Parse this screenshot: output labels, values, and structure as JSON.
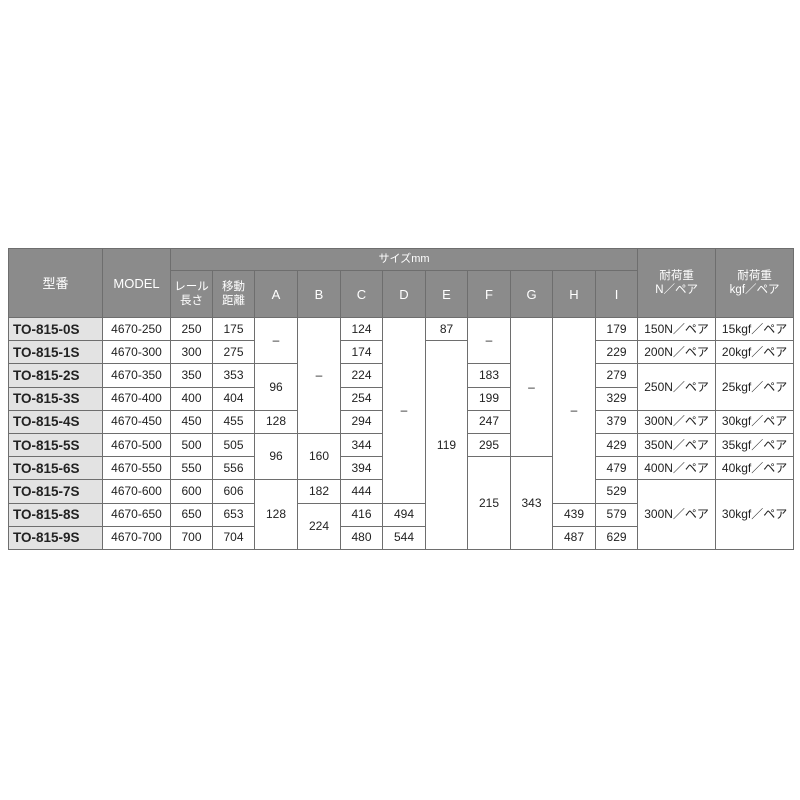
{
  "header": {
    "type": "型番",
    "model": "MODEL",
    "size_group": "サイズmm",
    "rail_length": [
      "レール",
      "長さ"
    ],
    "travel": [
      "移動",
      "距離"
    ],
    "letters": [
      "A",
      "B",
      "C",
      "D",
      "E",
      "F",
      "G",
      "H",
      "I"
    ],
    "load_n": [
      "耐荷重",
      "N／ペア"
    ],
    "load_kgf": [
      "耐荷重",
      "kgf／ペア"
    ]
  },
  "rows": [
    {
      "type": "TO-815-0S",
      "model": "4670-250",
      "rail": "250",
      "travel": "175"
    },
    {
      "type": "TO-815-1S",
      "model": "4670-300",
      "rail": "300",
      "travel": "275"
    },
    {
      "type": "TO-815-2S",
      "model": "4670-350",
      "rail": "350",
      "travel": "353"
    },
    {
      "type": "TO-815-3S",
      "model": "4670-400",
      "rail": "400",
      "travel": "404"
    },
    {
      "type": "TO-815-4S",
      "model": "4670-450",
      "rail": "450",
      "travel": "455"
    },
    {
      "type": "TO-815-5S",
      "model": "4670-500",
      "rail": "500",
      "travel": "505"
    },
    {
      "type": "TO-815-6S",
      "model": "4670-550",
      "rail": "550",
      "travel": "556"
    },
    {
      "type": "TO-815-7S",
      "model": "4670-600",
      "rail": "600",
      "travel": "606"
    },
    {
      "type": "TO-815-8S",
      "model": "4670-650",
      "rail": "650",
      "travel": "653"
    },
    {
      "type": "TO-815-9S",
      "model": "4670-700",
      "rail": "700",
      "travel": "704"
    }
  ],
  "merged_columns": {
    "A": [
      {
        "value": "–",
        "rows": 2
      },
      {
        "value": "96",
        "rows": 2
      },
      {
        "value": "128",
        "rows": 1
      },
      {
        "value": "96",
        "rows": 2
      },
      {
        "value": "128",
        "rows": 3
      }
    ],
    "B": [
      {
        "value": "–",
        "rows": 5
      },
      {
        "value": "160",
        "rows": 2
      },
      {
        "value": "182",
        "rows": 1
      },
      {
        "value": "224",
        "rows": 2
      }
    ],
    "C": [
      {
        "value": "124",
        "rows": 1
      },
      {
        "value": "174",
        "rows": 1
      },
      {
        "value": "224",
        "rows": 1
      },
      {
        "value": "254",
        "rows": 1
      },
      {
        "value": "294",
        "rows": 1
      },
      {
        "value": "344",
        "rows": 1
      },
      {
        "value": "394",
        "rows": 1
      },
      {
        "value": "444",
        "rows": 1
      },
      {
        "value": "416",
        "rows": 1
      },
      {
        "value": "480",
        "rows": 1
      }
    ],
    "D": [
      {
        "value": "–",
        "rows": 8
      },
      {
        "value": "494",
        "rows": 1
      },
      {
        "value": "544",
        "rows": 1
      }
    ],
    "E": [
      {
        "value": "87",
        "rows": 1
      },
      {
        "value": "119",
        "rows": 9
      }
    ],
    "F": [
      {
        "value": "–",
        "rows": 2
      },
      {
        "value": "183",
        "rows": 1
      },
      {
        "value": "199",
        "rows": 1
      },
      {
        "value": "247",
        "rows": 1
      },
      {
        "value": "295",
        "rows": 1
      },
      {
        "value": "215",
        "rows": 4
      }
    ],
    "G": [
      {
        "value": "–",
        "rows": 6
      },
      {
        "value": "343",
        "rows": 4
      }
    ],
    "H": [
      {
        "value": "–",
        "rows": 8
      },
      {
        "value": "439",
        "rows": 1
      },
      {
        "value": "487",
        "rows": 1
      }
    ],
    "I": [
      {
        "value": "179",
        "rows": 1
      },
      {
        "value": "229",
        "rows": 1
      },
      {
        "value": "279",
        "rows": 1
      },
      {
        "value": "329",
        "rows": 1
      },
      {
        "value": "379",
        "rows": 1
      },
      {
        "value": "429",
        "rows": 1
      },
      {
        "value": "479",
        "rows": 1
      },
      {
        "value": "529",
        "rows": 1
      },
      {
        "value": "579",
        "rows": 1
      },
      {
        "value": "629",
        "rows": 1
      }
    ],
    "load_n": [
      {
        "value": "150N／ペア",
        "rows": 1
      },
      {
        "value": "200N／ペア",
        "rows": 1
      },
      {
        "value": "250N／ペア",
        "rows": 2
      },
      {
        "value": "300N／ペア",
        "rows": 1
      },
      {
        "value": "350N／ペア",
        "rows": 1
      },
      {
        "value": "400N／ペア",
        "rows": 1
      },
      {
        "value": "300N／ペア",
        "rows": 3
      }
    ],
    "load_kgf": [
      {
        "value": "15kgf／ペア",
        "rows": 1
      },
      {
        "value": "20kgf／ペア",
        "rows": 1
      },
      {
        "value": "25kgf／ペア",
        "rows": 2
      },
      {
        "value": "30kgf／ペア",
        "rows": 1
      },
      {
        "value": "35kgf／ペア",
        "rows": 1
      },
      {
        "value": "40kgf／ペア",
        "rows": 1
      },
      {
        "value": "30kgf／ペア",
        "rows": 3
      }
    ]
  },
  "colors": {
    "header_bg": "#8b8b8b",
    "type_col_bg": "#e3e3e3",
    "border": "#6e6e6e"
  }
}
